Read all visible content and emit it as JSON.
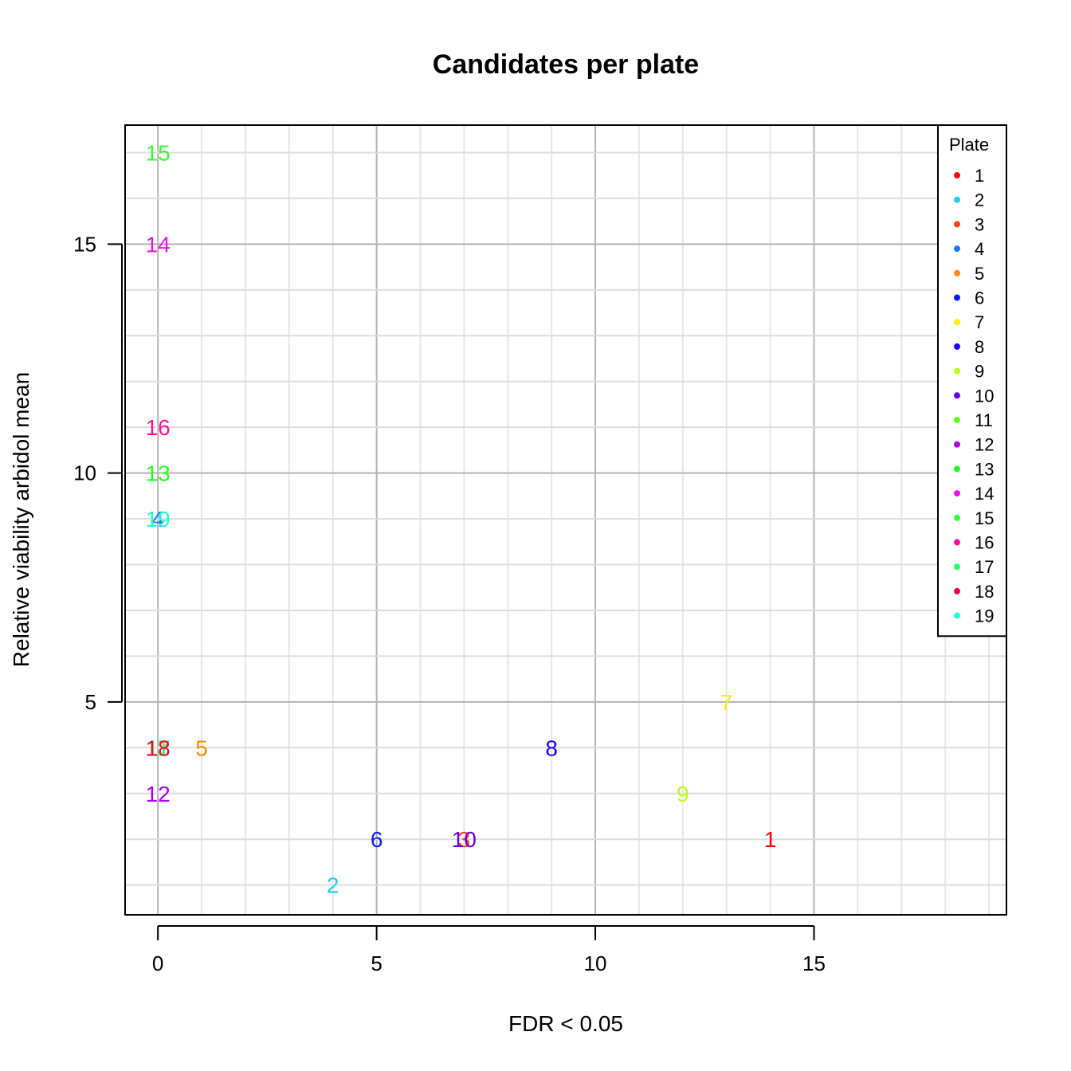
{
  "chart_data": {
    "type": "scatter",
    "title": "Candidates per plate",
    "xlabel": "FDR <  0.05",
    "ylabel": "Relative viability arbidol mean",
    "xlim": [
      -0.75,
      19.4
    ],
    "ylim": [
      0.35,
      17.6
    ],
    "xticks": [
      0,
      5,
      10,
      15
    ],
    "yticks": [
      5,
      10,
      15
    ],
    "grid": true,
    "legend": {
      "title": "Plate",
      "position": "top-right",
      "entries": [
        {
          "label": "1",
          "color": "#FF0000"
        },
        {
          "label": "2",
          "color": "#22CCEE"
        },
        {
          "label": "3",
          "color": "#FF4411"
        },
        {
          "label": "4",
          "color": "#1A77FF"
        },
        {
          "label": "5",
          "color": "#FF8C00"
        },
        {
          "label": "6",
          "color": "#0A1AFF"
        },
        {
          "label": "7",
          "color": "#FFEE00"
        },
        {
          "label": "8",
          "color": "#1A00EE"
        },
        {
          "label": "9",
          "color": "#B8FF1A"
        },
        {
          "label": "10",
          "color": "#6600EE"
        },
        {
          "label": "11",
          "color": "#66FF11"
        },
        {
          "label": "12",
          "color": "#AA00EE"
        },
        {
          "label": "13",
          "color": "#22FF22"
        },
        {
          "label": "14",
          "color": "#EE11EE"
        },
        {
          "label": "15",
          "color": "#33FF33"
        },
        {
          "label": "16",
          "color": "#FF1199"
        },
        {
          "label": "17",
          "color": "#22FF66"
        },
        {
          "label": "18",
          "color": "#EE0044"
        },
        {
          "label": "19",
          "color": "#22FFCC"
        }
      ]
    },
    "points": [
      {
        "label": "1",
        "x": 14,
        "y": 2,
        "color": "#FF0000"
      },
      {
        "label": "2",
        "x": 4,
        "y": 1,
        "color": "#22CCEE"
      },
      {
        "label": "3",
        "x": 7,
        "y": 2,
        "color": "#FF4411"
      },
      {
        "label": "4",
        "x": 0,
        "y": 9,
        "color": "#1A77FF"
      },
      {
        "label": "5",
        "x": 1,
        "y": 4,
        "color": "#FF8C00"
      },
      {
        "label": "6",
        "x": 5,
        "y": 2,
        "color": "#0A1AFF"
      },
      {
        "label": "7",
        "x": 13,
        "y": 5,
        "color": "#FFEE00"
      },
      {
        "label": "8",
        "x": 9,
        "y": 4,
        "color": "#1A00EE"
      },
      {
        "label": "9",
        "x": 12,
        "y": 3,
        "color": "#B8FF1A"
      },
      {
        "label": "10",
        "x": 7,
        "y": 2,
        "color": "#6600EE"
      },
      {
        "label": "11",
        "x": 0,
        "y": 4,
        "color": "#66FF11"
      },
      {
        "label": "12",
        "x": 0,
        "y": 3,
        "color": "#AA00EE"
      },
      {
        "label": "13",
        "x": 0,
        "y": 10,
        "color": "#22FF22"
      },
      {
        "label": "14",
        "x": 0,
        "y": 15,
        "color": "#EE11EE"
      },
      {
        "label": "15",
        "x": 0,
        "y": 17,
        "color": "#33FF33"
      },
      {
        "label": "16",
        "x": 0,
        "y": 11,
        "color": "#FF1199"
      },
      {
        "label": "17",
        "x": 0,
        "y": 4,
        "color": "#22FF66"
      },
      {
        "label": "18",
        "x": 0,
        "y": 4,
        "color": "#EE0044"
      },
      {
        "label": "19",
        "x": 0,
        "y": 9,
        "color": "#22FFCC"
      }
    ]
  }
}
